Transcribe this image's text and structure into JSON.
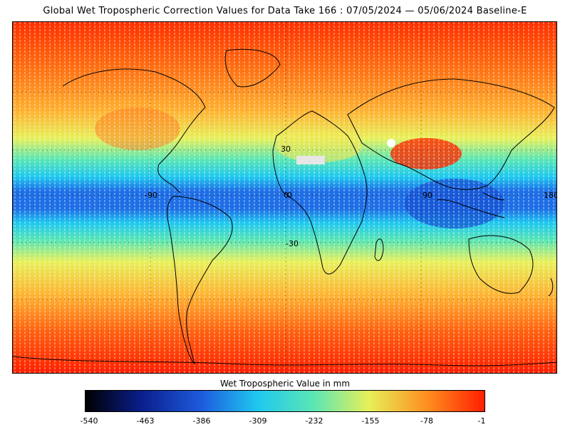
{
  "title": "Global Wet Tropospheric Correction Values for Data Take 166 : 07/05/2024 — 05/06/2024 Baseline-E",
  "map": {
    "lat_labels": [
      "30",
      "0",
      "-30"
    ],
    "lon_labels": [
      "-90",
      "0",
      "90",
      "180"
    ],
    "grid": "dotted",
    "coastlines": true
  },
  "colorbar": {
    "title": "Wet Tropospheric Value in mm",
    "min": -540,
    "max": -1,
    "ticks": [
      "-540",
      "-463",
      "-386",
      "-309",
      "-232",
      "-155",
      "-78",
      "-1"
    ],
    "colors": [
      "#000000",
      "#0a1e8c",
      "#1e5adc",
      "#1ec8f0",
      "#5ae6b4",
      "#e6f05a",
      "#ff8c1e",
      "#ff1e00"
    ]
  }
}
